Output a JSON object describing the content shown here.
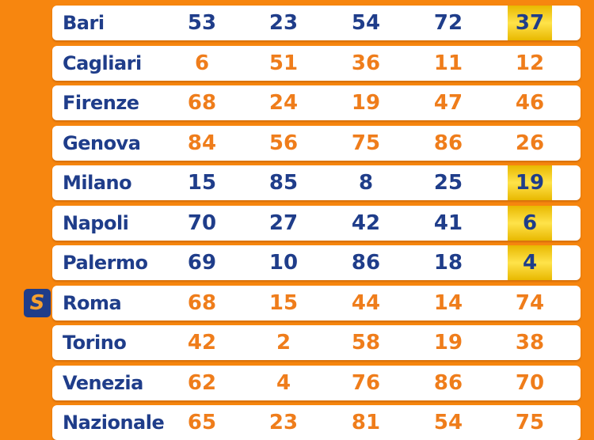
{
  "colors": {
    "background": "#f7860f",
    "blue": "#1f3d8a",
    "orange": "#ef7d1b",
    "highlight": "#ffd21f"
  },
  "badge": {
    "icon": "superenalotto-s-icon",
    "label": "S",
    "row": "Roma"
  },
  "rows": [
    {
      "city": "Bari",
      "numbers": [
        53,
        23,
        54,
        72,
        37
      ],
      "color": "blue",
      "highlight": [
        4
      ]
    },
    {
      "city": "Cagliari",
      "numbers": [
        6,
        51,
        36,
        11,
        12
      ],
      "color": "orange",
      "highlight": []
    },
    {
      "city": "Firenze",
      "numbers": [
        68,
        24,
        19,
        47,
        46
      ],
      "color": "orange",
      "highlight": []
    },
    {
      "city": "Genova",
      "numbers": [
        84,
        56,
        75,
        86,
        26
      ],
      "color": "orange",
      "highlight": []
    },
    {
      "city": "Milano",
      "numbers": [
        15,
        85,
        8,
        25,
        19
      ],
      "color": "blue",
      "highlight": [
        4
      ]
    },
    {
      "city": "Napoli",
      "numbers": [
        70,
        27,
        42,
        41,
        6
      ],
      "color": "blue",
      "highlight": [
        4
      ]
    },
    {
      "city": "Palermo",
      "numbers": [
        69,
        10,
        86,
        18,
        4
      ],
      "color": "blue",
      "highlight": [
        4
      ]
    },
    {
      "city": "Roma",
      "numbers": [
        68,
        15,
        44,
        14,
        74
      ],
      "color": "orange",
      "highlight": []
    },
    {
      "city": "Torino",
      "numbers": [
        42,
        2,
        58,
        19,
        38
      ],
      "color": "orange",
      "highlight": []
    },
    {
      "city": "Venezia",
      "numbers": [
        62,
        4,
        76,
        86,
        70
      ],
      "color": "orange",
      "highlight": []
    },
    {
      "city": "Nazionale",
      "numbers": [
        65,
        23,
        81,
        54,
        75
      ],
      "color": "orange",
      "highlight": []
    }
  ]
}
